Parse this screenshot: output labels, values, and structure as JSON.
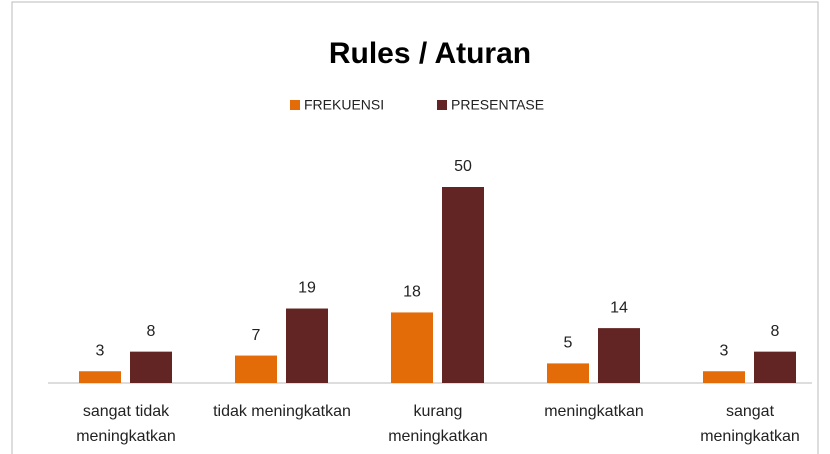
{
  "chart_data": {
    "type": "bar",
    "title": "Rules / Aturan",
    "categories": [
      "sangat tidak meningkatkan",
      "tidak meningkatkan",
      "kurang meningkatkan",
      "meningkatkan",
      "sangat meningkatkan"
    ],
    "series": [
      {
        "name": "FREKUENSI",
        "color": "#e36c09",
        "values": [
          3,
          7,
          18,
          5,
          3
        ]
      },
      {
        "name": "PRESENTASE",
        "color": "#632523",
        "values": [
          8,
          19,
          50,
          14,
          8
        ]
      }
    ],
    "ylim": [
      0,
      50
    ],
    "legend": "top"
  }
}
